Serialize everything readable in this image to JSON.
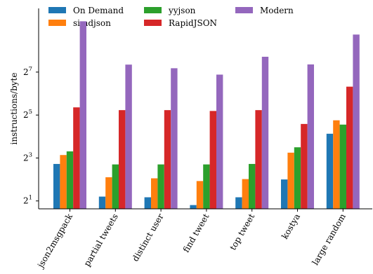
{
  "chart_data": {
    "type": "bar",
    "title": "",
    "xlabel": "",
    "ylabel": "instructions/byte",
    "y_scale": "log2",
    "ylim": [
      1.55,
      1000
    ],
    "y_ticks": [
      {
        "value": 2,
        "base": "2",
        "exp": "1"
      },
      {
        "value": 8,
        "base": "2",
        "exp": "3"
      },
      {
        "value": 32,
        "base": "2",
        "exp": "5"
      },
      {
        "value": 128,
        "base": "2",
        "exp": "7"
      }
    ],
    "grid": false,
    "legend_position": "top",
    "categories": [
      "json2msgpack",
      "partial tweets",
      "distinct user",
      "find tweet",
      "top tweet",
      "kostya",
      "large random"
    ],
    "series": [
      {
        "name": "On Demand",
        "color": "#1f77b4",
        "values": [
          6.6,
          2.3,
          2.25,
          1.75,
          2.25,
          4.0,
          17.5
        ]
      },
      {
        "name": "simdjson",
        "color": "#ff7f0e",
        "values": [
          8.8,
          4.3,
          4.15,
          3.8,
          4.05,
          9.5,
          27.0
        ]
      },
      {
        "name": "yyjson",
        "color": "#2ca02c",
        "values": [
          9.9,
          6.5,
          6.5,
          6.5,
          6.6,
          11.3,
          23.5
        ]
      },
      {
        "name": "RapidJSON",
        "color": "#d62728",
        "values": [
          41.0,
          37.5,
          37.5,
          36.5,
          37.5,
          24.0,
          80.0
        ]
      },
      {
        "name": "Modern",
        "color": "#9467bd",
        "values": [
          660.0,
          163.0,
          145.0,
          118.0,
          210.0,
          164.0,
          430.0
        ]
      }
    ]
  }
}
